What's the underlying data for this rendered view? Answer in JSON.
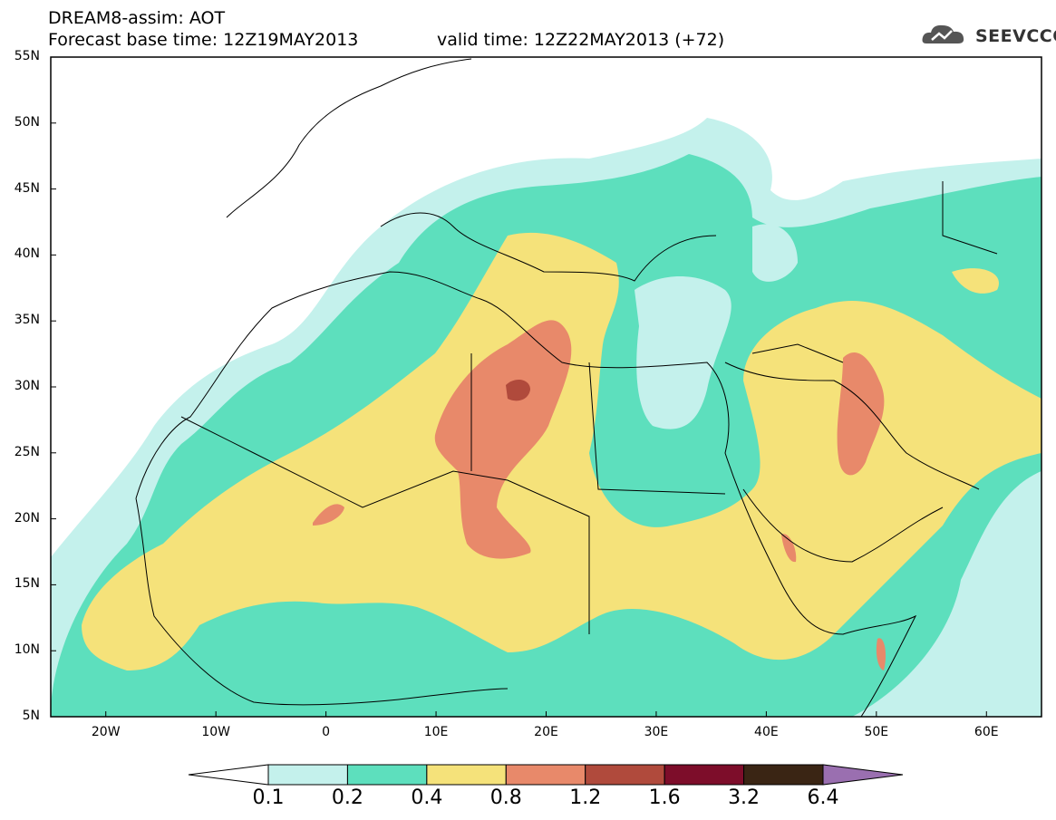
{
  "header": {
    "title": "DREAM8-assim: AOT",
    "base_time": "Forecast base time: 12Z19MAY2013",
    "valid_time": "valid time: 12Z22MAY2013 (+72)"
  },
  "logo": {
    "text": "SEEVCCC",
    "icon": "cloud-logo-icon"
  },
  "map": {
    "lon_range": [
      -25,
      65
    ],
    "lat_range": [
      5,
      55
    ],
    "lat_labels": [
      "55N",
      "50N",
      "45N",
      "40N",
      "35N",
      "30N",
      "25N",
      "20N",
      "15N",
      "10N",
      "5N"
    ],
    "lon_labels": [
      "20W",
      "10W",
      "0",
      "10E",
      "20E",
      "30E",
      "40E",
      "50E",
      "60E"
    ],
    "lat_values": [
      55,
      50,
      45,
      40,
      35,
      30,
      25,
      20,
      15,
      10,
      5
    ],
    "lon_values": [
      -20,
      -10,
      0,
      10,
      20,
      30,
      40,
      50,
      60
    ]
  },
  "colorbar": {
    "levels": [
      "0.1",
      "0.2",
      "0.4",
      "0.8",
      "1.2",
      "1.6",
      "3.2",
      "6.4"
    ],
    "colors": [
      "#c4f1ec",
      "#5ddfbd",
      "#f5e27a",
      "#e8896a",
      "#b04a3c",
      "#7d0d2a",
      "#3a2514"
    ],
    "under_color": "#ffffff",
    "over_color": "#9a6fb0"
  }
}
